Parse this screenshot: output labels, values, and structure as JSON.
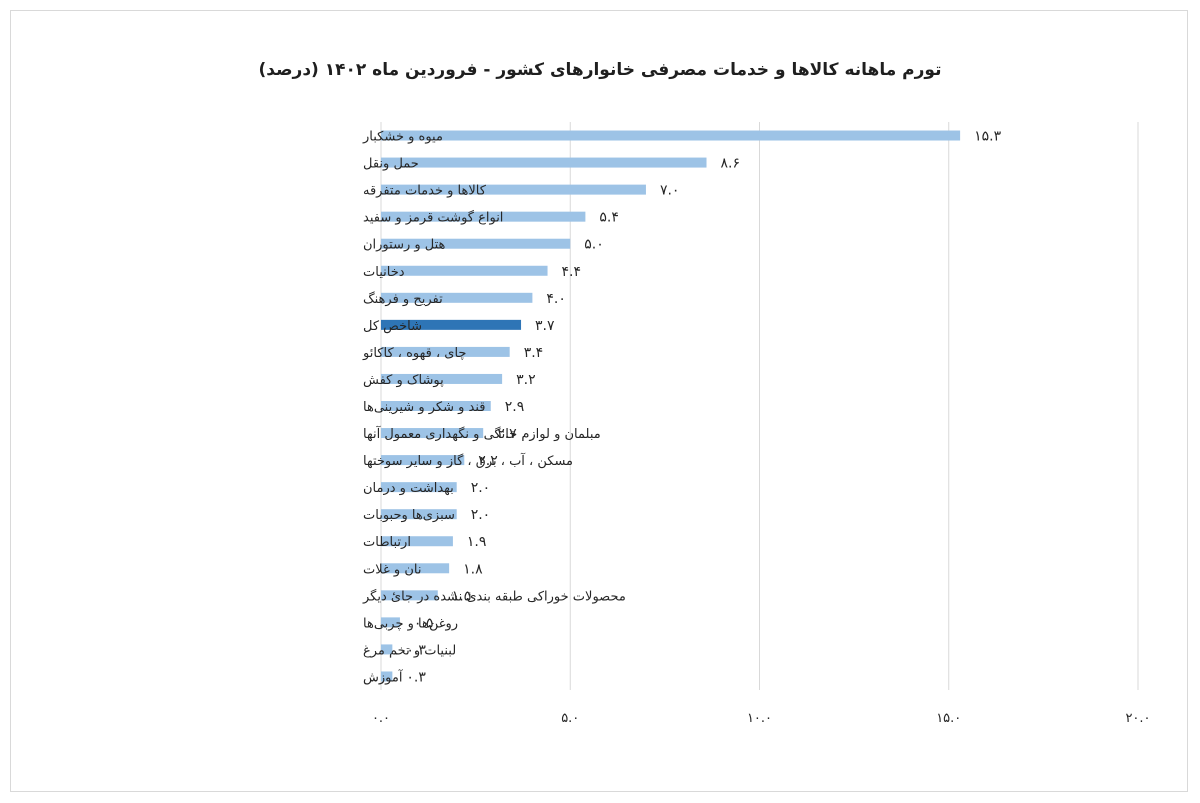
{
  "chart_data": {
    "type": "bar",
    "orientation": "horizontal",
    "title": "تورم ماهانه کالاها و خدمات مصرفی خانوارهای کشور - فروردین ماه ۱۴۰۲ (درصد)",
    "categories": [
      "میوه و خشکبار",
      "حمل ونقل",
      "کالاها و خدمات متفرقه",
      "انواع گوشت قرمز و سفید",
      "هتل و رستوران",
      "دخانیات",
      "تفریح و فرهنگ",
      "شاخص کل",
      "چای ، قهوه ، کاکائو",
      "پوشاک و کفش",
      "قند و شکر و شیرینی‌ها",
      "مبلمان و لوازم خانگی و نگهداری معمول آنها",
      "مسکن ، آب ، برق ، گاز و سایر سوختها",
      "بهداشت و درمان",
      "سبزی‌ها وحبوبات",
      "ارتباطات",
      "نان و غلات",
      "محصولات خوراکی طبقه بندیٔ نشده در جایٔ دیگر",
      "روغن‌ها و چربی‌ها",
      "لبنیات و تخم مرغ",
      "آموزش"
    ],
    "values": [
      15.3,
      8.6,
      7.0,
      5.4,
      5.0,
      4.4,
      4.0,
      3.7,
      3.4,
      3.2,
      2.9,
      2.7,
      2.2,
      2.0,
      2.0,
      1.9,
      1.8,
      1.5,
      0.5,
      0.3,
      0.3
    ],
    "value_labels": [
      "۱۵.۳",
      "۸.۶",
      "۷.۰",
      "۵.۴",
      "۵.۰",
      "۴.۴",
      "۴.۰",
      "۳.۷",
      "۳.۴",
      "۳.۲",
      "۲.۹",
      "۲.۷",
      "۲.۲",
      "۲.۰",
      "۲.۰",
      "۱.۹",
      "۱.۸",
      "۱.۵",
      "۰.۵",
      "۰.۳",
      "۰.۳"
    ],
    "highlight_index": 7,
    "xlim": [
      0,
      20
    ],
    "xticks": [
      0,
      5,
      10,
      15,
      20
    ],
    "xtick_labels": [
      "۰.۰",
      "۵.۰",
      "۱۰.۰",
      "۱۵.۰",
      "۲۰.۰"
    ],
    "grid": true,
    "colors": {
      "bar": "#9dc3e6",
      "highlight": "#2e75b6",
      "grid": "#d9d9d9"
    }
  }
}
